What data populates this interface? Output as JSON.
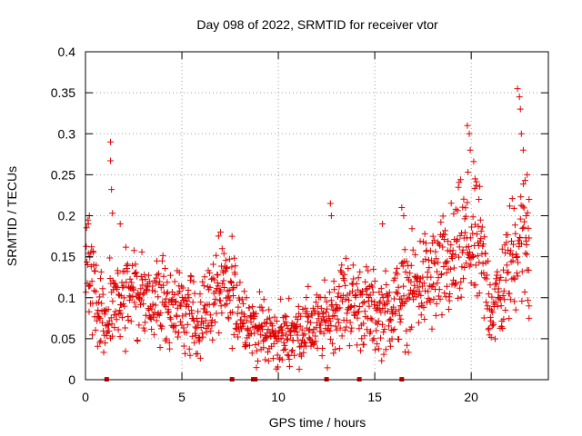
{
  "chart_data": {
    "type": "scatter",
    "title": "Day 098 of 2022, SRMTID for receiver vtor",
    "xlabel": "GPS time / hours",
    "ylabel": "SRMTID / TECUs",
    "xlim": [
      0,
      24
    ],
    "ylim": [
      0,
      0.4
    ],
    "x_ticks": [
      0,
      5,
      10,
      15,
      20
    ],
    "x_tick_labels": [
      "0",
      "5",
      "10",
      "15",
      "20"
    ],
    "y_ticks": [
      0,
      0.05,
      0.1,
      0.15,
      0.2,
      0.25,
      0.3,
      0.35,
      0.4
    ],
    "y_tick_labels": [
      "0",
      "0.05",
      "0.1",
      "0.15",
      "0.2",
      "0.25",
      "0.3",
      "0.35",
      "0.4"
    ],
    "grid": true,
    "marker": "+",
    "series_color": "#e00000",
    "gap_markers_x": [
      1.1,
      7.6,
      8.7,
      8.8,
      12.5,
      14.2,
      16.4
    ],
    "profile": [
      [
        0.0,
        0.14
      ],
      [
        0.3,
        0.12
      ],
      [
        0.6,
        0.09
      ],
      [
        1.0,
        0.07
      ],
      [
        1.5,
        0.09
      ],
      [
        2.0,
        0.1
      ],
      [
        2.5,
        0.11
      ],
      [
        3.0,
        0.1
      ],
      [
        3.5,
        0.09
      ],
      [
        4.0,
        0.1
      ],
      [
        4.5,
        0.09
      ],
      [
        5.0,
        0.08
      ],
      [
        5.5,
        0.08
      ],
      [
        6.0,
        0.07
      ],
      [
        6.5,
        0.1
      ],
      [
        7.0,
        0.11
      ],
      [
        7.5,
        0.1
      ],
      [
        8.0,
        0.09
      ],
      [
        8.5,
        0.07
      ],
      [
        9.0,
        0.06
      ],
      [
        9.5,
        0.055
      ],
      [
        10.0,
        0.05
      ],
      [
        10.5,
        0.055
      ],
      [
        11.0,
        0.06
      ],
      [
        11.5,
        0.065
      ],
      [
        12.0,
        0.065
      ],
      [
        12.5,
        0.07
      ],
      [
        13.0,
        0.09
      ],
      [
        13.5,
        0.1
      ],
      [
        14.0,
        0.09
      ],
      [
        14.5,
        0.09
      ],
      [
        15.0,
        0.08
      ],
      [
        15.5,
        0.08
      ],
      [
        16.0,
        0.09
      ],
      [
        16.5,
        0.1
      ],
      [
        17.0,
        0.11
      ],
      [
        17.5,
        0.12
      ],
      [
        18.0,
        0.12
      ],
      [
        18.5,
        0.13
      ],
      [
        19.0,
        0.14
      ],
      [
        19.5,
        0.16
      ],
      [
        20.0,
        0.17
      ],
      [
        20.5,
        0.15
      ],
      [
        21.0,
        0.09
      ],
      [
        21.5,
        0.1
      ],
      [
        22.0,
        0.14
      ],
      [
        22.5,
        0.18
      ],
      [
        23.0,
        0.16
      ]
    ],
    "outliers": [
      [
        1.3,
        0.29
      ],
      [
        1.3,
        0.267
      ],
      [
        1.35,
        0.232
      ],
      [
        1.4,
        0.203
      ],
      [
        1.8,
        0.19
      ],
      [
        0.2,
        0.2
      ],
      [
        0.15,
        0.19
      ],
      [
        7.0,
        0.18
      ],
      [
        7.6,
        0.175
      ],
      [
        12.7,
        0.215
      ],
      [
        12.75,
        0.2
      ],
      [
        15.4,
        0.19
      ],
      [
        16.4,
        0.21
      ],
      [
        16.5,
        0.2
      ],
      [
        19.8,
        0.31
      ],
      [
        19.9,
        0.3
      ],
      [
        19.95,
        0.28
      ],
      [
        20.2,
        0.245
      ],
      [
        20.4,
        0.22
      ],
      [
        22.4,
        0.355
      ],
      [
        22.5,
        0.345
      ],
      [
        22.55,
        0.33
      ],
      [
        22.6,
        0.3
      ],
      [
        22.7,
        0.28
      ],
      [
        22.9,
        0.25
      ],
      [
        23.0,
        0.22
      ],
      [
        23.0,
        0.09
      ],
      [
        23.0,
        0.075
      ],
      [
        22.85,
        0.2
      ]
    ]
  }
}
